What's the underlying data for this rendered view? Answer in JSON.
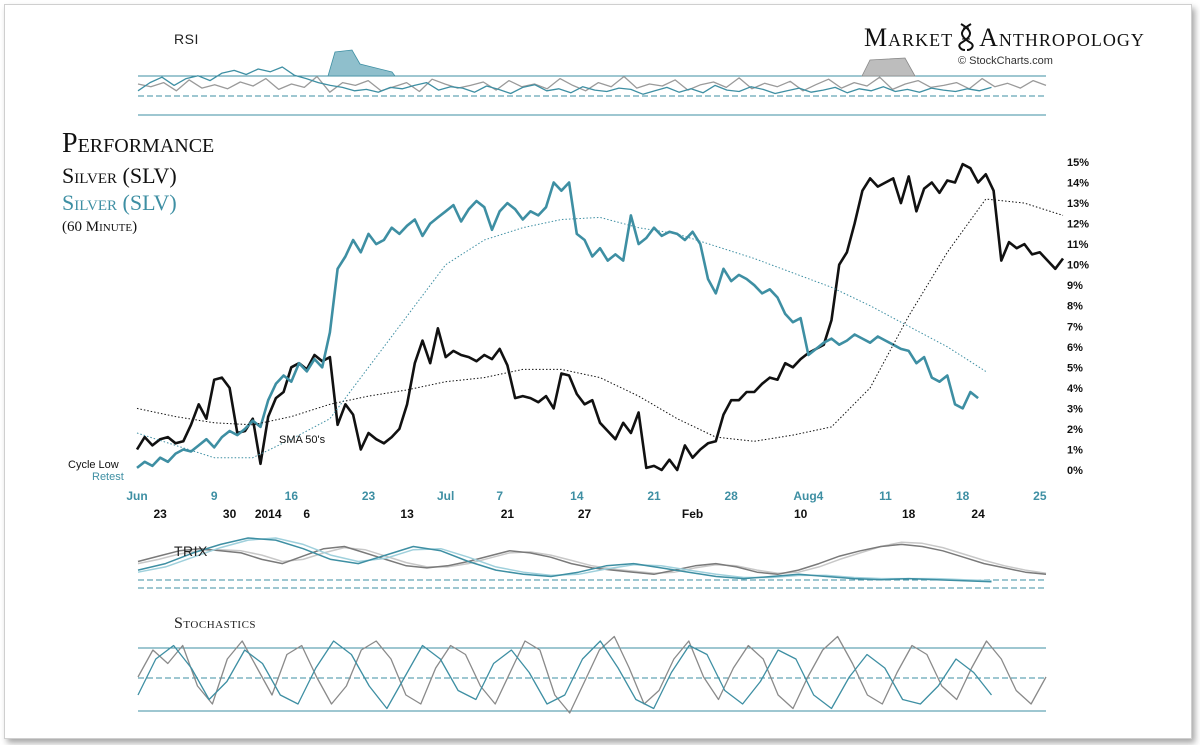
{
  "brand": {
    "title": "Market Anthropology",
    "source": "© StockCharts.com"
  },
  "header": {
    "title": "Performance",
    "series_black": "Silver (SLV)",
    "series_teal": "Silver (SLV)",
    "subtitle": "(60 Minute)"
  },
  "panels": {
    "rsi": "RSI",
    "trix": "TRIX",
    "stochastics": "Stochastics"
  },
  "annotations": {
    "cycle_low": "Cycle Low",
    "retest": "Retest",
    "sma": "SMA 50's"
  },
  "colors": {
    "black_series": "#111111",
    "teal_series": "#3e8fa3",
    "grid": "#3e8fa3"
  },
  "chart_data": {
    "type": "line",
    "ylim": [
      0,
      15
    ],
    "y_ticks": [
      "0%",
      "1%",
      "2%",
      "3%",
      "4%",
      "5%",
      "6%",
      "7%",
      "8%",
      "9%",
      "10%",
      "11%",
      "12%",
      "13%",
      "14%",
      "15%"
    ],
    "x_ticks_top": [
      {
        "label": "Jun",
        "x": 0
      },
      {
        "label": "9",
        "x": 10
      },
      {
        "label": "16",
        "x": 20
      },
      {
        "label": "23",
        "x": 30
      },
      {
        "label": "Jul",
        "x": 40
      },
      {
        "label": "7",
        "x": 47
      },
      {
        "label": "14",
        "x": 57
      },
      {
        "label": "21",
        "x": 67
      },
      {
        "label": "28",
        "x": 77
      },
      {
        "label": "Aug4",
        "x": 87
      },
      {
        "label": "11",
        "x": 97
      },
      {
        "label": "18",
        "x": 107
      },
      {
        "label": "25",
        "x": 117
      }
    ],
    "x_ticks_bottom": [
      {
        "label": "23",
        "x": 3
      },
      {
        "label": "30",
        "x": 12
      },
      {
        "label": "2014",
        "x": 17
      },
      {
        "label": "6",
        "x": 22
      },
      {
        "label": "13",
        "x": 35
      },
      {
        "label": "21",
        "x": 48
      },
      {
        "label": "27",
        "x": 58
      },
      {
        "label": "Feb",
        "x": 72
      },
      {
        "label": "10",
        "x": 86
      },
      {
        "label": "18",
        "x": 100
      },
      {
        "label": "24",
        "x": 109
      }
    ],
    "xlim": [
      0,
      120
    ],
    "series": [
      {
        "name": "Silver (SLV)",
        "color": "#111111",
        "x": [
          0,
          1,
          2,
          3,
          4,
          5,
          6,
          7,
          8,
          9,
          10,
          11,
          12,
          13,
          14,
          15,
          16,
          17,
          18,
          19,
          20,
          21,
          22,
          23,
          24,
          25,
          26,
          27,
          28,
          29,
          30,
          31,
          32,
          33,
          34,
          35,
          36,
          37,
          38,
          39,
          40,
          41,
          42,
          43,
          44,
          45,
          46,
          47,
          48,
          49,
          50,
          51,
          52,
          53,
          54,
          55,
          56,
          57,
          58,
          59,
          60,
          61,
          62,
          63,
          64,
          65,
          66,
          67,
          68,
          69,
          70,
          71,
          72,
          73,
          74,
          75,
          76,
          77,
          78,
          79,
          80,
          81,
          82,
          83,
          84,
          85,
          86,
          87,
          88,
          89,
          90,
          91,
          92,
          93,
          94,
          95,
          96,
          97,
          98,
          99,
          100,
          101,
          102,
          103,
          104,
          105,
          106,
          107,
          108,
          109,
          110,
          111,
          112,
          113,
          114,
          115,
          116,
          117,
          118,
          119,
          120
        ],
        "y": [
          1.0,
          1.6,
          1.2,
          1.5,
          1.6,
          1.3,
          1.4,
          2.2,
          3.2,
          2.5,
          4.4,
          4.5,
          4.0,
          1.8,
          1.9,
          2.5,
          0.3,
          2.6,
          3.5,
          3.8,
          5.0,
          5.2,
          4.9,
          5.6,
          5.3,
          5.5,
          2.2,
          3.2,
          2.7,
          1.0,
          1.8,
          1.5,
          1.3,
          1.6,
          2.0,
          3.2,
          5.2,
          6.3,
          5.2,
          6.9,
          5.5,
          5.8,
          5.6,
          5.5,
          5.3,
          5.6,
          5.4,
          5.9,
          5.1,
          3.5,
          3.6,
          3.5,
          3.3,
          3.6,
          3.0,
          4.7,
          4.6,
          3.7,
          3.2,
          3.4,
          2.3,
          1.9,
          1.5,
          2.3,
          1.8,
          2.8,
          0.1,
          0.2,
          0.0,
          0.5,
          0.0,
          1.2,
          0.6,
          1.0,
          1.3,
          1.4,
          2.7,
          3.4,
          3.4,
          3.8,
          3.8,
          4.2,
          4.5,
          4.4,
          5.2,
          5.0,
          5.4,
          5.7,
          5.9,
          6.1,
          7.3,
          10.0,
          10.6,
          12.0,
          13.6,
          14.2,
          13.8,
          14.0,
          14.2,
          13.0,
          14.3,
          12.6,
          13.7,
          14.0,
          13.5,
          14.1,
          14.0,
          14.9,
          14.7,
          14.0,
          14.4,
          13.6,
          10.2,
          11.1,
          10.8,
          11.0,
          10.5,
          10.6,
          10.2,
          9.8,
          10.3
        ]
      },
      {
        "name": "Silver (SLV)",
        "color": "#3e8fa3",
        "x": [
          0,
          1,
          2,
          3,
          4,
          5,
          6,
          7,
          8,
          9,
          10,
          11,
          12,
          13,
          14,
          15,
          16,
          17,
          18,
          19,
          20,
          21,
          22,
          23,
          24,
          25,
          26,
          27,
          28,
          29,
          30,
          31,
          32,
          33,
          34,
          35,
          36,
          37,
          38,
          39,
          40,
          41,
          42,
          43,
          44,
          45,
          46,
          47,
          48,
          49,
          50,
          51,
          52,
          53,
          54,
          55,
          56,
          57,
          58,
          59,
          60,
          61,
          62,
          63,
          64,
          65,
          66,
          67,
          68,
          69,
          70,
          71,
          72,
          73,
          74,
          75,
          76,
          77,
          78,
          79,
          80,
          81,
          82,
          83,
          84,
          85,
          86,
          87,
          88,
          89,
          90,
          91,
          92,
          93,
          94,
          95,
          96,
          97,
          98,
          99,
          100,
          101,
          102,
          103,
          104,
          105,
          106,
          107,
          108,
          109
        ],
        "y": [
          0.1,
          0.4,
          0.2,
          0.6,
          0.4,
          0.8,
          1.0,
          0.9,
          1.2,
          1.5,
          1.1,
          1.6,
          1.9,
          1.7,
          2.0,
          2.4,
          2.1,
          3.4,
          4.2,
          4.6,
          4.3,
          5.2,
          4.8,
          5.4,
          5.0,
          6.7,
          9.8,
          10.4,
          11.2,
          10.6,
          11.5,
          11.0,
          11.2,
          11.8,
          11.5,
          11.9,
          12.2,
          11.4,
          12.0,
          12.3,
          12.6,
          12.9,
          12.1,
          12.7,
          13.1,
          12.8,
          11.7,
          12.6,
          13.0,
          12.7,
          12.2,
          12.6,
          12.4,
          12.8,
          14.0,
          13.6,
          14.0,
          11.5,
          11.2,
          10.4,
          10.8,
          10.2,
          10.5,
          10.2,
          12.4,
          11.0,
          11.3,
          11.8,
          11.4,
          11.6,
          11.5,
          11.2,
          11.6,
          11.0,
          9.3,
          8.6,
          9.8,
          9.2,
          9.5,
          9.3,
          9.0,
          8.6,
          8.8,
          8.4,
          7.6,
          7.2,
          7.4,
          5.6,
          5.9,
          6.2,
          6.4,
          6.1,
          6.3,
          6.6,
          6.4,
          6.2,
          6.5,
          6.3,
          6.1,
          5.9,
          5.8,
          5.2,
          5.5,
          4.5,
          4.3,
          4.6,
          3.2,
          3.0,
          3.8,
          3.5
        ]
      },
      {
        "name": "",
        "color": "#111111",
        "style": "dotted",
        "x": [
          0,
          5,
          10,
          15,
          20,
          25,
          30,
          35,
          40,
          45,
          50,
          55,
          60,
          65,
          70,
          75,
          80,
          85,
          90,
          95,
          100,
          105,
          110,
          115,
          120
        ],
        "y": [
          3.0,
          2.6,
          2.3,
          2.2,
          2.6,
          3.2,
          3.6,
          3.9,
          4.3,
          4.5,
          4.9,
          4.9,
          4.5,
          3.6,
          2.5,
          1.6,
          1.4,
          1.7,
          2.1,
          4.0,
          7.5,
          10.6,
          13.2,
          13.0,
          12.4
        ]
      },
      {
        "name": "",
        "color": "#3e8fa3",
        "style": "dotted",
        "x": [
          0,
          5,
          10,
          15,
          20,
          25,
          30,
          35,
          40,
          45,
          50,
          55,
          60,
          65,
          70,
          75,
          80,
          85,
          90,
          95,
          100,
          105,
          110
        ],
        "y": [
          1.8,
          1.2,
          0.6,
          0.6,
          1.5,
          2.5,
          5.0,
          7.5,
          10.0,
          11.2,
          11.8,
          12.2,
          12.3,
          11.8,
          11.5,
          10.9,
          10.3,
          9.6,
          8.9,
          8.0,
          7.0,
          6.0,
          4.8
        ]
      }
    ],
    "rsi": {
      "black": [
        50,
        46,
        52,
        40,
        56,
        44,
        49,
        43,
        53,
        47,
        58,
        42,
        50,
        45,
        61,
        38,
        52,
        48,
        55,
        40,
        46,
        52,
        39,
        57,
        50,
        44,
        48,
        53,
        41,
        55,
        46,
        50,
        43,
        58,
        48,
        40,
        52,
        46,
        61,
        44,
        50,
        47,
        56,
        41,
        49,
        53,
        45,
        59,
        43,
        51,
        46,
        54,
        40,
        49,
        57,
        44,
        52,
        47,
        60,
        42,
        50,
        55,
        45,
        48,
        52,
        43,
        58,
        46,
        51,
        44,
        55,
        48
      ],
      "teal": [
        40,
        52,
        60,
        48,
        58,
        62,
        55,
        66,
        70,
        64,
        72,
        68,
        75,
        63,
        58,
        52,
        48,
        45,
        40,
        42,
        38,
        45,
        43,
        48,
        52,
        41,
        46,
        44,
        38,
        47,
        42,
        36,
        45,
        49,
        40,
        43,
        37,
        46,
        41,
        39,
        44,
        42,
        35,
        40,
        45,
        38,
        43,
        37,
        48,
        41,
        39,
        46,
        42,
        36,
        40,
        44,
        38,
        41,
        45,
        37,
        43,
        40,
        46,
        39,
        42,
        38,
        44,
        41,
        39,
        43,
        40,
        45
      ]
    },
    "trix": {
      "black_dark": [
        50,
        55,
        60,
        62,
        60,
        58,
        52,
        48,
        55,
        62,
        64,
        58,
        52,
        46,
        44,
        46,
        50,
        55,
        60,
        58,
        54,
        48,
        44,
        42,
        40,
        38,
        42,
        46,
        48,
        45,
        40,
        38,
        42,
        48,
        55,
        60,
        64,
        66,
        64,
        60,
        54,
        48,
        44,
        40,
        38
      ],
      "black_light": [
        48,
        52,
        57,
        60,
        61,
        60,
        56,
        50,
        52,
        58,
        63,
        61,
        55,
        49,
        45,
        45,
        48,
        53,
        58,
        59,
        56,
        51,
        46,
        43,
        41,
        39,
        40,
        44,
        47,
        46,
        42,
        39,
        40,
        45,
        52,
        58,
        64,
        68,
        67,
        63,
        57,
        51,
        46,
        42,
        39
      ],
      "teal_dark": [
        42,
        48,
        58,
        66,
        72,
        70,
        62,
        52,
        48,
        56,
        64,
        60,
        50,
        42,
        38,
        36,
        40,
        46,
        48,
        44,
        40,
        36,
        34,
        36,
        38,
        36,
        34,
        33,
        34,
        33,
        32,
        31
      ],
      "teal_light": [
        40,
        45,
        54,
        63,
        70,
        72,
        66,
        56,
        50,
        53,
        61,
        62,
        54,
        45,
        40,
        37,
        38,
        43,
        47,
        46,
        42,
        38,
        35,
        35,
        37,
        37,
        35,
        34,
        34,
        34,
        33,
        32
      ]
    },
    "stochastics": {
      "black": [
        50,
        80,
        65,
        85,
        40,
        20,
        70,
        90,
        60,
        30,
        75,
        85,
        50,
        20,
        40,
        80,
        90,
        70,
        30,
        20,
        60,
        85,
        75,
        40,
        20,
        55,
        90,
        80,
        30,
        10,
        45,
        80,
        95,
        60,
        20,
        35,
        70,
        90,
        50,
        25,
        60,
        85,
        70,
        30,
        15,
        50,
        80,
        95,
        65,
        30,
        20,
        55,
        85,
        75,
        40,
        25,
        60,
        90,
        70,
        35,
        20,
        50
      ],
      "teal": [
        30,
        70,
        85,
        60,
        25,
        45,
        80,
        65,
        30,
        20,
        60,
        90,
        75,
        40,
        15,
        50,
        85,
        70,
        35,
        25,
        65,
        80,
        55,
        20,
        30,
        70,
        90,
        60,
        25,
        15,
        55,
        85,
        75,
        35,
        20,
        45,
        80,
        70,
        30,
        15,
        50,
        75,
        60,
        25,
        20,
        40,
        70,
        55,
        30
      ]
    }
  }
}
